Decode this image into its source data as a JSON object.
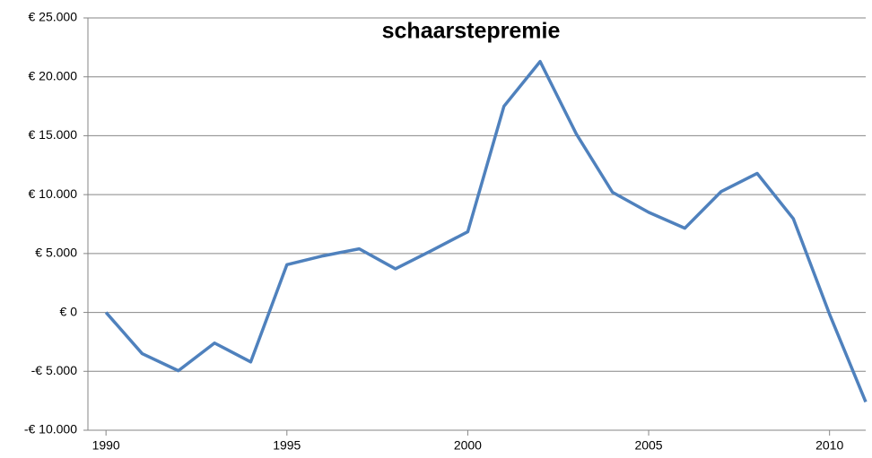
{
  "chart_data": {
    "type": "line",
    "title": "schaarstepremie",
    "x": [
      1990,
      1991,
      1992,
      1993,
      1994,
      1995,
      1996,
      1997,
      1998,
      1999,
      2000,
      2001,
      2002,
      2003,
      2004,
      2005,
      2006,
      2007,
      2008,
      2009,
      2010,
      2011
    ],
    "series": [
      {
        "color": "#4f81bd",
        "values": [
          0,
          -3500,
          -4950,
          -2600,
          -4200,
          4050,
          4800,
          5400,
          3700,
          5250,
          6850,
          17500,
          21300,
          15150,
          10200,
          8500,
          7150,
          10250,
          11800,
          7950,
          -150,
          -7600
        ]
      }
    ],
    "xlim": [
      1989.5,
      2011
    ],
    "xticks": [
      1990,
      1995,
      2000,
      2005,
      2010
    ],
    "ylim": [
      -10000,
      25000
    ],
    "yticks": [
      {
        "value": -10000,
        "label": "-€ 10.000"
      },
      {
        "value": -5000,
        "label": "-€ 5.000"
      },
      {
        "value": 0,
        "label": "€ 0"
      },
      {
        "value": 5000,
        "label": "€ 5.000"
      },
      {
        "value": 10000,
        "label": "€ 10.000"
      },
      {
        "value": 15000,
        "label": "€ 15.000"
      },
      {
        "value": 20000,
        "label": "€ 20.000"
      },
      {
        "value": 25000,
        "label": "€ 25.000"
      }
    ],
    "grid": true
  }
}
